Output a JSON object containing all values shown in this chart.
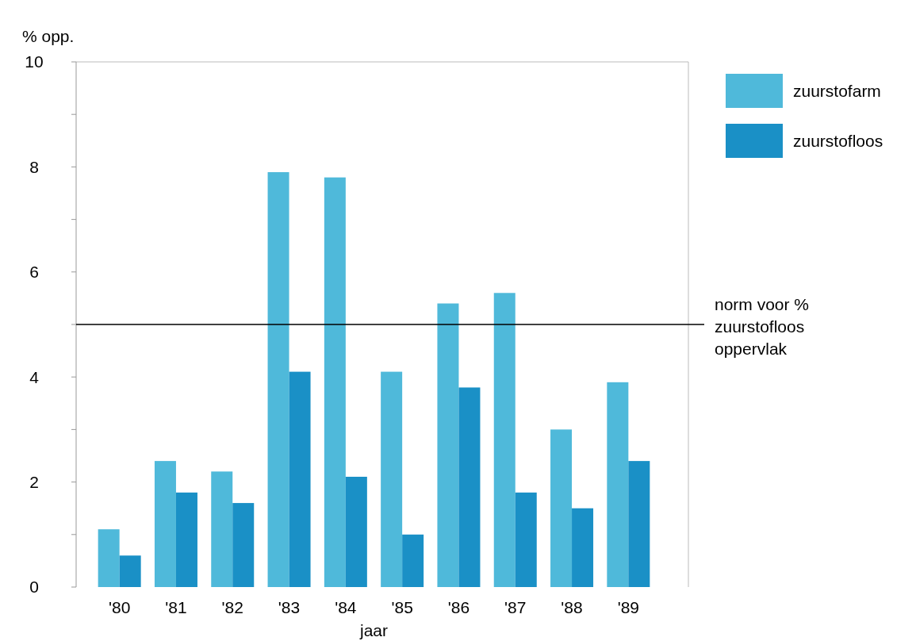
{
  "chart_data": {
    "type": "bar",
    "ylabel": "% opp.",
    "xlabel": "jaar",
    "categories": [
      "'80",
      "'81",
      "'82",
      "'83",
      "'84",
      "'85",
      "'86",
      "'87",
      "'88",
      "'89"
    ],
    "series": [
      {
        "name": "zuurstofarm",
        "color": "#4fb9da",
        "values": [
          1.1,
          2.4,
          2.2,
          7.9,
          7.8,
          4.1,
          5.4,
          5.6,
          3.0,
          3.9
        ]
      },
      {
        "name": "zuurstofloos",
        "color": "#1a90c6",
        "values": [
          0.6,
          1.8,
          1.6,
          4.1,
          2.1,
          1.0,
          3.8,
          1.8,
          1.5,
          2.4
        ]
      }
    ],
    "ylim": [
      0,
      10
    ],
    "yticks": [
      0,
      {
        "value": 1,
        "label": null
      },
      2,
      {
        "value": 3,
        "label": null
      },
      4,
      {
        "value": 5,
        "label": null
      },
      6,
      {
        "value": 7,
        "label": null
      },
      8,
      {
        "value": 9,
        "label": null
      },
      10
    ],
    "ref_lines": [
      {
        "axis": "y",
        "value": 5,
        "label": "norm voor % zuurstofloos oppervlak",
        "color": "#000000"
      }
    ],
    "grid": false,
    "legend": "top right"
  }
}
